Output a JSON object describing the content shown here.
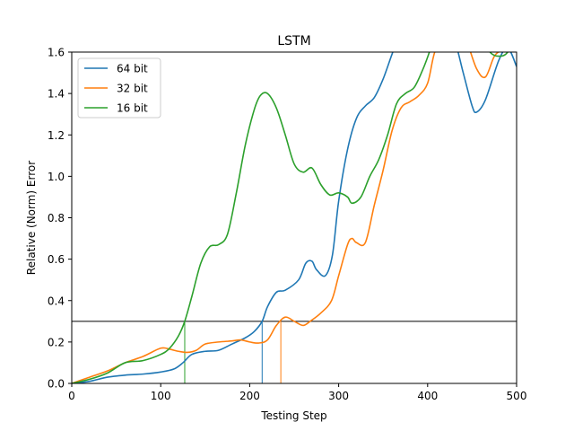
{
  "chart_data": {
    "type": "line",
    "title": "LSTM",
    "xlabel": "Testing Step",
    "ylabel": "Relative (Norm) Error",
    "xlim": [
      0,
      500
    ],
    "ylim": [
      0.0,
      1.6
    ],
    "xticks": [
      0,
      100,
      200,
      300,
      400,
      500
    ],
    "xtick_labels": [
      "0",
      "100",
      "200",
      "300",
      "400",
      "500"
    ],
    "yticks": [
      0.0,
      0.2,
      0.4,
      0.6,
      0.8,
      1.0,
      1.2,
      1.4,
      1.6
    ],
    "ytick_labels": [
      "0.0",
      "0.2",
      "0.4",
      "0.6",
      "0.8",
      "1.0",
      "1.2",
      "1.4",
      "1.6"
    ],
    "legend_position": "top-left",
    "threshold": {
      "y": 0.3,
      "color": "#000000"
    },
    "series": [
      {
        "name": "64 bit",
        "color": "#1f77b4",
        "threshold_cross_x": 214,
        "x": [
          0,
          20,
          40,
          60,
          80,
          100,
          115,
          125,
          135,
          150,
          165,
          180,
          195,
          205,
          214,
          220,
          230,
          240,
          255,
          263,
          270,
          275,
          285,
          293,
          300,
          310,
          320,
          330,
          340,
          350,
          360,
          365,
          380,
          400,
          420,
          430,
          440,
          450,
          455,
          465,
          480,
          490,
          500
        ],
        "y": [
          0.0,
          0.01,
          0.03,
          0.04,
          0.045,
          0.055,
          0.07,
          0.1,
          0.14,
          0.155,
          0.16,
          0.19,
          0.22,
          0.25,
          0.3,
          0.37,
          0.44,
          0.45,
          0.5,
          0.58,
          0.59,
          0.55,
          0.52,
          0.62,
          0.88,
          1.13,
          1.28,
          1.34,
          1.38,
          1.47,
          1.59,
          1.64,
          1.7,
          1.7,
          1.7,
          1.66,
          1.5,
          1.34,
          1.31,
          1.37,
          1.56,
          1.62,
          1.53
        ]
      },
      {
        "name": "32 bit",
        "color": "#ff7f0e",
        "threshold_cross_x": 235,
        "x": [
          0,
          20,
          40,
          60,
          80,
          100,
          110,
          120,
          130,
          140,
          150,
          165,
          180,
          190,
          200,
          210,
          220,
          230,
          240,
          250,
          260,
          268,
          280,
          292,
          300,
          310,
          315,
          320,
          330,
          340,
          350,
          360,
          370,
          380,
          390,
          400,
          408,
          420,
          440,
          455,
          465,
          475,
          485,
          500
        ],
        "y": [
          0.0,
          0.03,
          0.06,
          0.1,
          0.13,
          0.17,
          0.165,
          0.155,
          0.15,
          0.16,
          0.19,
          0.2,
          0.205,
          0.21,
          0.2,
          0.195,
          0.21,
          0.28,
          0.32,
          0.3,
          0.28,
          0.3,
          0.34,
          0.4,
          0.52,
          0.67,
          0.7,
          0.68,
          0.68,
          0.86,
          1.03,
          1.22,
          1.33,
          1.36,
          1.39,
          1.45,
          1.6,
          1.7,
          1.68,
          1.52,
          1.48,
          1.58,
          1.62,
          1.7
        ]
      },
      {
        "name": "16 bit",
        "color": "#2ca02c",
        "threshold_cross_x": 127,
        "x": [
          0,
          20,
          40,
          60,
          80,
          100,
          110,
          120,
          127,
          135,
          145,
          155,
          165,
          175,
          185,
          195,
          205,
          212,
          220,
          230,
          240,
          250,
          260,
          270,
          280,
          290,
          300,
          310,
          315,
          325,
          335,
          345,
          355,
          365,
          375,
          385,
          395,
          402,
          410,
          430,
          445,
          460,
          470,
          480,
          490,
          500
        ],
        "y": [
          0.0,
          0.02,
          0.05,
          0.1,
          0.11,
          0.14,
          0.17,
          0.23,
          0.3,
          0.42,
          0.58,
          0.66,
          0.67,
          0.72,
          0.92,
          1.15,
          1.32,
          1.39,
          1.4,
          1.33,
          1.2,
          1.06,
          1.02,
          1.04,
          0.96,
          0.91,
          0.92,
          0.9,
          0.87,
          0.9,
          1.0,
          1.08,
          1.2,
          1.35,
          1.4,
          1.43,
          1.52,
          1.6,
          1.7,
          1.7,
          1.7,
          1.68,
          1.6,
          1.58,
          1.6,
          1.7
        ]
      }
    ]
  }
}
